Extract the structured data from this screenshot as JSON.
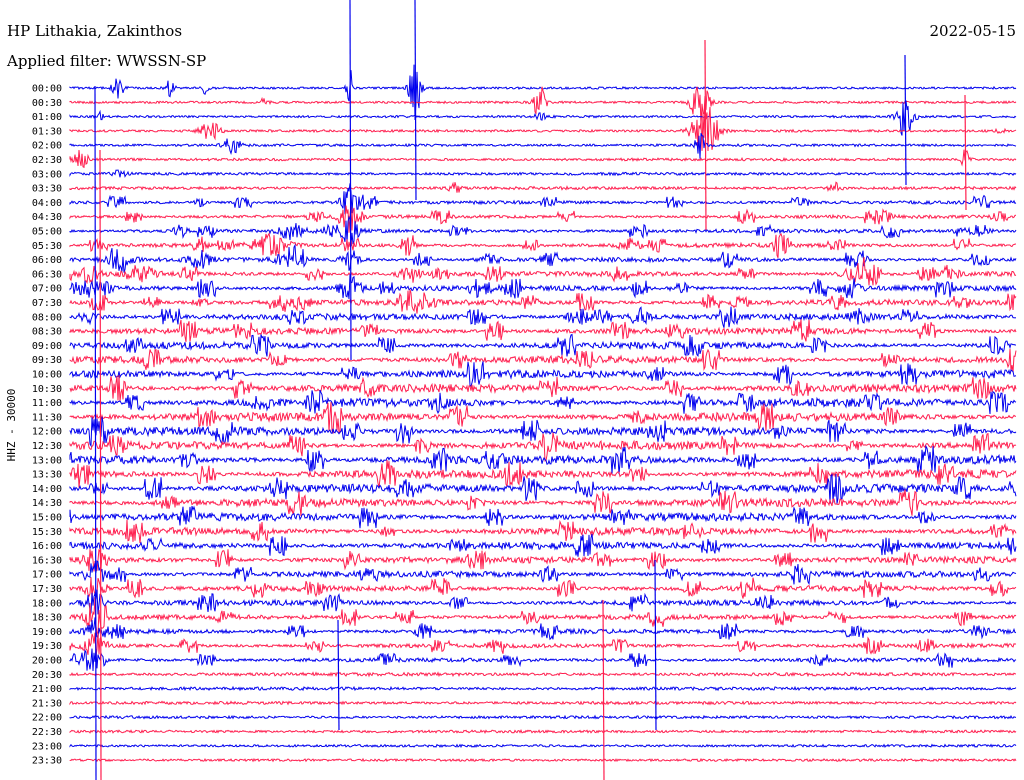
{
  "header": {
    "station": "HP Lithakia, Zakinthos",
    "filter": "Applied filter: WWSSN-SP",
    "date": "2022-05-15"
  },
  "chart_data": {
    "type": "line",
    "title": "HP Lithakia, Zakinthos",
    "subtitle": "Applied filter: WWSSN-SP",
    "ylabel": "HHZ - 30000",
    "date": "2022-05-15",
    "tick_labels": [
      "00:00",
      "00:30",
      "01:00",
      "01:30",
      "02:00",
      "02:30",
      "03:00",
      "03:30",
      "04:00",
      "04:30",
      "05:00",
      "05:30",
      "06:00",
      "06:30",
      "07:00",
      "07:30",
      "08:00",
      "08:30",
      "09:00",
      "09:30",
      "10:00",
      "10:30",
      "11:00",
      "11:30",
      "12:00",
      "12:30",
      "13:00",
      "13:30",
      "14:00",
      "14:30",
      "15:00",
      "15:30",
      "16:00",
      "16:30",
      "17:00",
      "17:30",
      "18:00",
      "18:30",
      "19:00",
      "19:30",
      "20:00",
      "20:30",
      "21:00",
      "21:30",
      "22:00",
      "22:30",
      "23:00",
      "23:30"
    ],
    "colors": {
      "even": "#0000ee",
      "odd": "#ff1f4f"
    },
    "grid": false,
    "legend": "none"
  }
}
